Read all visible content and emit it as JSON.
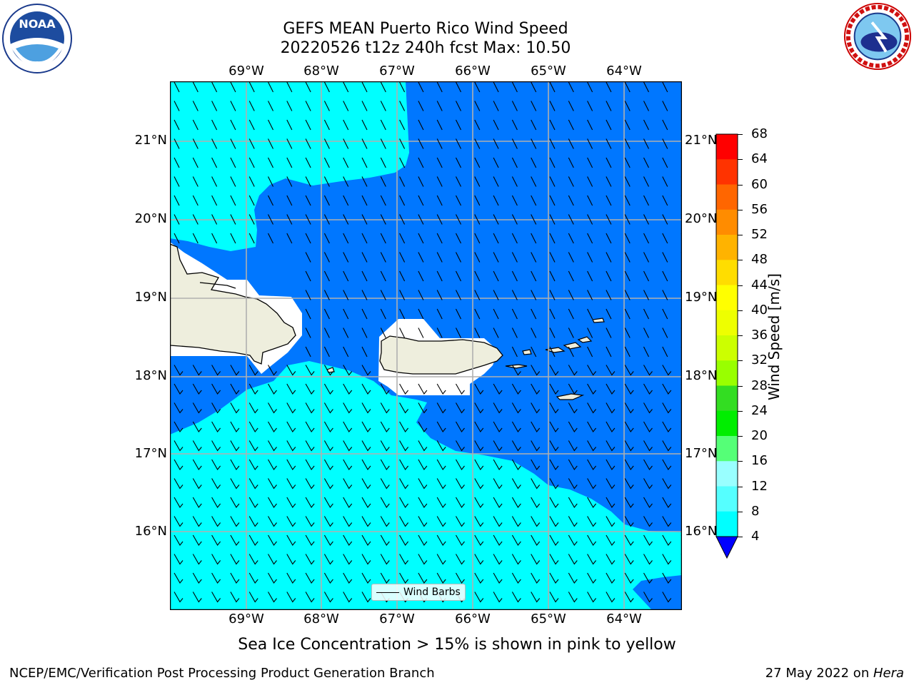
{
  "title": {
    "line1": "GEFS MEAN Puerto Rico Wind Speed",
    "line2": "20220526 t12z 240h fcst   Max: 10.50"
  },
  "axes": {
    "lon_labels": [
      "69°W",
      "68°W",
      "67°W",
      "66°W",
      "65°W",
      "64°W"
    ],
    "lat_labels": [
      "21°N",
      "20°N",
      "19°N",
      "18°N",
      "17°N",
      "16°N"
    ]
  },
  "legend": {
    "label": "Wind Barbs"
  },
  "colorbar": {
    "label": "Wind Speed [m/s]",
    "ticks": [
      "68",
      "64",
      "60",
      "56",
      "52",
      "48",
      "44",
      "40",
      "36",
      "32",
      "28",
      "24",
      "20",
      "16",
      "12",
      "8",
      "4"
    ],
    "colors": [
      "#ff0000",
      "#ff3300",
      "#ff6600",
      "#ff8c00",
      "#ffb300",
      "#ffdd00",
      "#ffff00",
      "#eeff00",
      "#ccff00",
      "#99ff00",
      "#33dd22",
      "#00ee00",
      "#55ff77",
      "#99ffff",
      "#55ffff",
      "#00ffff",
      "#0077ff"
    ],
    "under_color": "#0000ff"
  },
  "colors": {
    "wind_4_8": "#0077ff",
    "wind_8_12": "#00ffff",
    "land": "#eeeedd"
  },
  "note": "Sea Ice Concentration > 15% is shown in pink to yellow",
  "footer": {
    "left": "NCEP/EMC/Verification Post Processing Product Generation Branch",
    "right_prefix": "27 May 2022 on ",
    "right_host": "Hera"
  },
  "logos": {
    "noaa": "NOAA",
    "nws": "NATIONAL WEATHER SERVICE"
  }
}
